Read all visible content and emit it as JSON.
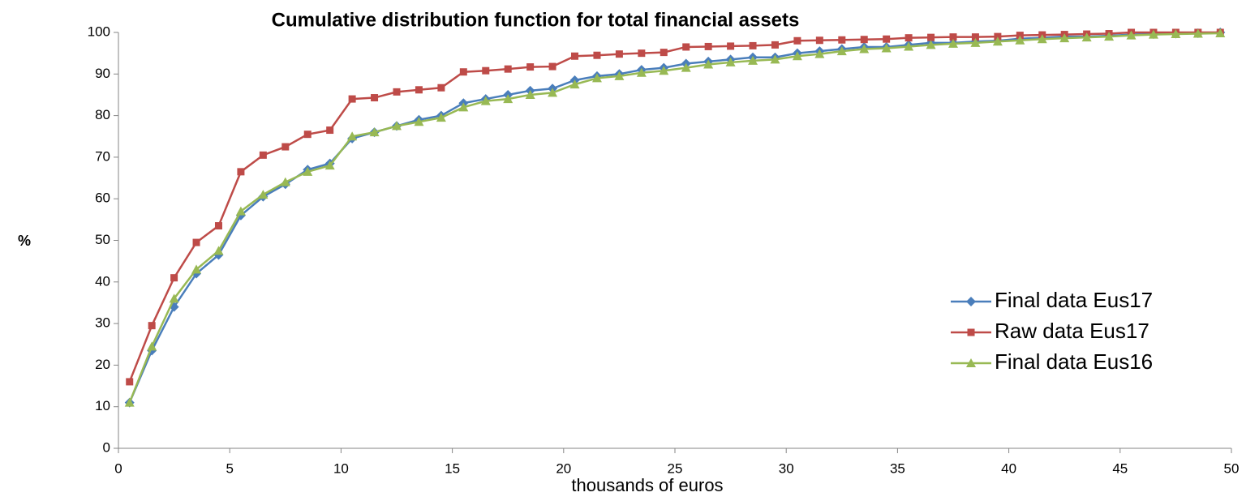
{
  "chart_data": {
    "type": "line",
    "title": "Cumulative distribution function for total financial assets",
    "x_label": "thousands of euros",
    "y_label": "%",
    "x": [
      0.5,
      1.5,
      2.5,
      3.5,
      4.5,
      5.5,
      6.5,
      7.5,
      8.5,
      9.5,
      10.5,
      11.5,
      12.5,
      13.5,
      14.5,
      15.5,
      16.5,
      17.5,
      18.5,
      19.5,
      20.5,
      21.5,
      22.5,
      23.5,
      24.5,
      25.5,
      26.5,
      27.5,
      28.5,
      29.5,
      30.5,
      31.5,
      32.5,
      33.5,
      34.5,
      35.5,
      36.5,
      37.5,
      38.5,
      39.5,
      40.5,
      41.5,
      42.5,
      43.5,
      44.5,
      45.5,
      46.5,
      47.5,
      48.5,
      49.5
    ],
    "series": [
      {
        "name": "Final data Eus17",
        "color": "#4a7ebb",
        "marker": "diamond",
        "values": [
          11,
          23.5,
          34,
          42,
          46.5,
          56,
          60.5,
          63.5,
          67,
          68.5,
          74.5,
          76,
          77.5,
          79,
          80,
          83,
          84,
          85,
          86,
          86.5,
          88.5,
          89.5,
          90,
          91,
          91.5,
          92.5,
          93,
          93.5,
          94,
          94,
          95,
          95.5,
          96,
          96.5,
          96.5,
          97,
          97.5,
          97.5,
          97.8,
          98,
          98.5,
          98.7,
          99,
          99,
          99.2,
          99.5,
          99.6,
          99.7,
          99.8,
          100
        ]
      },
      {
        "name": "Raw data Eus17",
        "color": "#be4b48",
        "marker": "square",
        "values": [
          16,
          29.5,
          41,
          49.5,
          53.5,
          66.5,
          70.5,
          72.5,
          75.5,
          76.5,
          84,
          84.3,
          85.7,
          86.2,
          86.7,
          90.5,
          90.8,
          91.2,
          91.7,
          91.8,
          94.3,
          94.5,
          94.8,
          95,
          95.2,
          96.5,
          96.6,
          96.7,
          96.8,
          97,
          98,
          98.1,
          98.2,
          98.3,
          98.4,
          98.7,
          98.8,
          98.9,
          98.9,
          99,
          99.3,
          99.4,
          99.5,
          99.6,
          99.7,
          100,
          100,
          100,
          100,
          100
        ]
      },
      {
        "name": "Final data Eus16",
        "color": "#98b954",
        "marker": "triangle",
        "values": [
          11,
          24.5,
          36,
          43,
          47.5,
          57,
          61,
          64,
          66.5,
          68,
          75,
          76,
          77.5,
          78.5,
          79.5,
          82,
          83.5,
          84,
          85,
          85.5,
          87.5,
          89,
          89.5,
          90.3,
          90.8,
          91.5,
          92.3,
          92.8,
          93.2,
          93.5,
          94.3,
          94.8,
          95.5,
          96,
          96.2,
          96.6,
          97,
          97.3,
          97.5,
          97.8,
          98.1,
          98.4,
          98.6,
          98.8,
          99,
          99.3,
          99.5,
          99.6,
          99.7,
          99.8
        ]
      }
    ],
    "xlim": [
      0,
      50
    ],
    "xticks": [
      0,
      5,
      10,
      15,
      20,
      25,
      30,
      35,
      40,
      45,
      50
    ],
    "ylim": [
      0,
      100
    ],
    "yticks": [
      0,
      10,
      20,
      30,
      40,
      50,
      60,
      70,
      80,
      90,
      100
    ],
    "grid": false,
    "legend": "right"
  }
}
